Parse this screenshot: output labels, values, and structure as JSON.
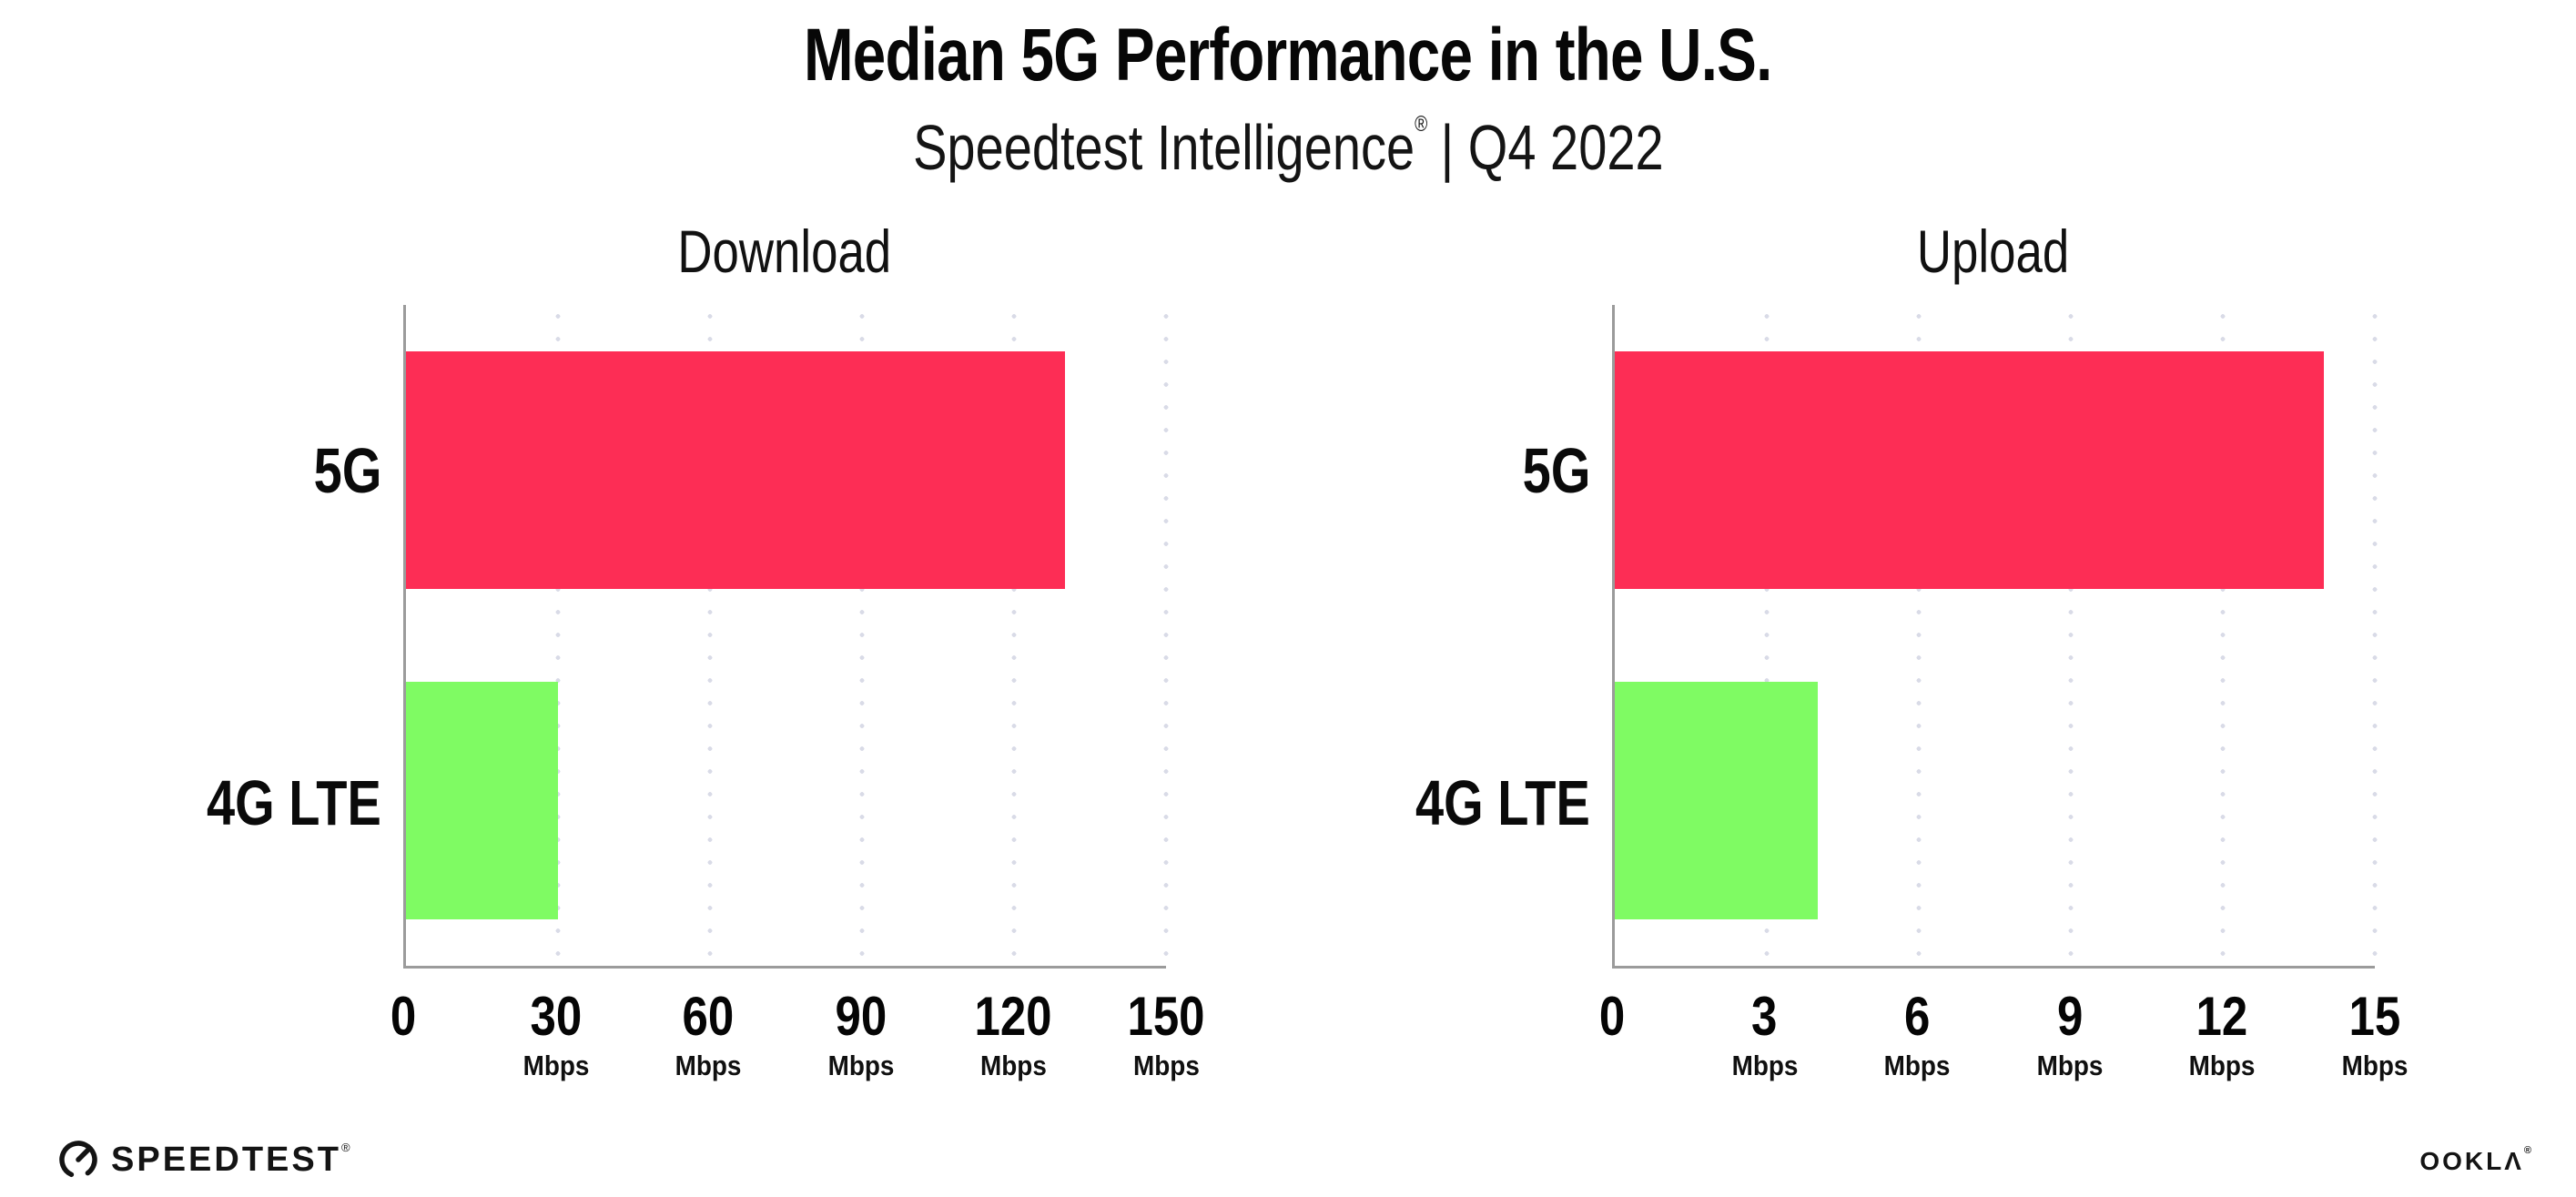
{
  "header": {
    "title": "Median 5G Performance in the U.S.",
    "subtitle": {
      "brand": "Speedtest Intelligence",
      "reg": "®",
      "period": "| Q4 2022"
    }
  },
  "colors": {
    "bar_5g": "#FD2D55",
    "bar_4g_lte": "#7FFB63",
    "axis": "#9b9b9b",
    "gridline": "#d9dbe7",
    "text": "#0d0d0d"
  },
  "chart_data": [
    {
      "type": "bar",
      "orientation": "horizontal",
      "title": "Download",
      "categories": [
        "5G",
        "4G LTE"
      ],
      "values": [
        130,
        30
      ],
      "unit": "Mbps",
      "xlim": [
        0,
        150
      ],
      "xticks": [
        0,
        30,
        60,
        90,
        120,
        150
      ],
      "xtick_labels": [
        "0",
        "30",
        "60",
        "90",
        "120",
        "150"
      ],
      "bar_colors": [
        "#FD2D55",
        "#7FFB63"
      ],
      "grid": "vertical dotted gridlines at each tick, no legend, bars start at y-axis"
    },
    {
      "type": "bar",
      "orientation": "horizontal",
      "title": "Upload",
      "categories": [
        "5G",
        "4G LTE"
      ],
      "values": [
        14,
        4
      ],
      "unit": "Mbps",
      "xlim": [
        0,
        15
      ],
      "xticks": [
        0,
        3,
        6,
        9,
        12,
        15
      ],
      "xtick_labels": [
        "0",
        "3",
        "6",
        "9",
        "12",
        "15"
      ],
      "bar_colors": [
        "#FD2D55",
        "#7FFB63"
      ],
      "grid": "vertical dotted gridlines at each tick, no legend, bars start at y-axis"
    }
  ],
  "footer": {
    "speedtest": {
      "label": "SPEEDTEST",
      "reg": "®"
    },
    "ookla": {
      "label": "OOKLΛ",
      "reg": "®"
    }
  }
}
